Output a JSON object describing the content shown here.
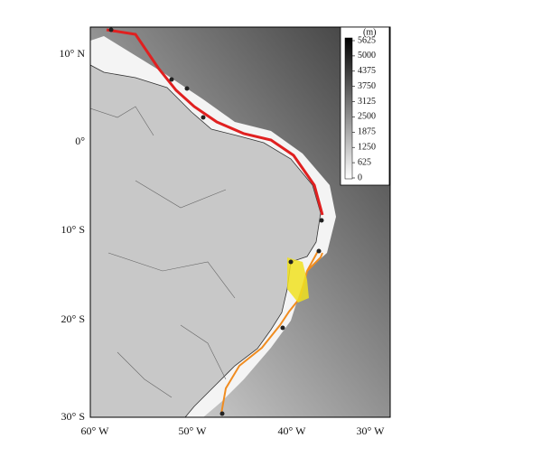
{
  "map": {
    "lat_labels": [
      "10° N",
      "0°",
      "10° S",
      "20° S",
      "30° S"
    ],
    "lon_labels": [
      "60° W",
      "50° W",
      "40° W",
      "30° W"
    ],
    "colorbar": {
      "unit": "(m)",
      "range": [
        0,
        5625
      ],
      "ticks": [
        0,
        625,
        1250,
        1875,
        2500,
        3125,
        3750,
        4375,
        5000,
        5625
      ]
    }
  }
}
